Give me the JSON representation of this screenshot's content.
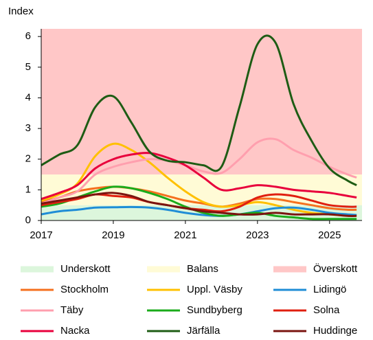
{
  "chart_data": {
    "type": "line",
    "y_label": "Index",
    "xlim": [
      2017,
      2025.9
    ],
    "ylim": [
      0,
      6.25
    ],
    "xticks": [
      2017,
      2019,
      2021,
      2023,
      2025
    ],
    "yticks": [
      0,
      1,
      2,
      3,
      4,
      5,
      6
    ],
    "bands": [
      {
        "name": "Underskott",
        "from": 0,
        "to": 0.5,
        "color": "#dcf6dc"
      },
      {
        "name": "Balans",
        "from": 0.5,
        "to": 1.5,
        "color": "#fffbd6"
      },
      {
        "name": "Överskott",
        "from": 1.5,
        "to": 6.25,
        "color": "#ffc7c7"
      }
    ],
    "x": [
      2017,
      2017.5,
      2018,
      2018.5,
      2019,
      2019.5,
      2020,
      2020.5,
      2021,
      2021.5,
      2022,
      2022.5,
      2023,
      2023.5,
      2024,
      2024.5,
      2025,
      2025.5,
      2025.75
    ],
    "series": [
      {
        "name": "Stockholm",
        "color": "#f5701e",
        "values": [
          0.6,
          0.75,
          0.95,
          1.05,
          1.1,
          1.05,
          0.95,
          0.8,
          0.65,
          0.55,
          0.45,
          0.55,
          0.7,
          0.7,
          0.6,
          0.5,
          0.4,
          0.35,
          0.35
        ]
      },
      {
        "name": "Uppl. Väsby",
        "color": "#ffc000",
        "values": [
          0.65,
          0.85,
          1.2,
          2.1,
          2.5,
          2.3,
          1.9,
          1.4,
          0.95,
          0.6,
          0.45,
          0.5,
          0.6,
          0.5,
          0.35,
          0.25,
          0.2,
          0.15,
          0.15
        ]
      },
      {
        "name": "Lidingö",
        "color": "#1f8dd6",
        "values": [
          0.2,
          0.3,
          0.35,
          0.42,
          0.43,
          0.44,
          0.42,
          0.35,
          0.25,
          0.18,
          0.15,
          0.2,
          0.3,
          0.4,
          0.42,
          0.35,
          0.25,
          0.2,
          0.18
        ]
      },
      {
        "name": "Täby",
        "color": "#ff9fae",
        "values": [
          0.55,
          0.75,
          0.95,
          1.5,
          1.75,
          1.9,
          2.0,
          1.95,
          1.8,
          1.6,
          1.55,
          2.0,
          2.55,
          2.65,
          2.3,
          2.05,
          1.75,
          1.5,
          1.4
        ]
      },
      {
        "name": "Sundbyberg",
        "color": "#1aab1a",
        "values": [
          0.45,
          0.55,
          0.75,
          0.95,
          1.1,
          1.05,
          0.9,
          0.7,
          0.45,
          0.25,
          0.15,
          0.2,
          0.25,
          0.15,
          0.1,
          0.05,
          0.05,
          0.05,
          0.05
        ]
      },
      {
        "name": "Solna",
        "color": "#e01f0f",
        "values": [
          0.5,
          0.6,
          0.7,
          0.85,
          0.8,
          0.75,
          0.6,
          0.5,
          0.4,
          0.35,
          0.3,
          0.45,
          0.75,
          0.85,
          0.8,
          0.65,
          0.5,
          0.45,
          0.45
        ]
      },
      {
        "name": "Nacka",
        "color": "#e8003c",
        "values": [
          0.7,
          0.9,
          1.15,
          1.7,
          2.0,
          2.15,
          2.2,
          2.05,
          1.8,
          1.4,
          1.0,
          1.05,
          1.15,
          1.1,
          1.0,
          0.95,
          0.9,
          0.8,
          0.75
        ]
      },
      {
        "name": "Järfälla",
        "color": "#1e5c14",
        "values": [
          1.8,
          2.15,
          2.45,
          3.7,
          4.05,
          3.2,
          2.25,
          1.95,
          1.9,
          1.8,
          1.75,
          3.7,
          5.75,
          5.8,
          3.8,
          2.6,
          1.7,
          1.3,
          1.15
        ]
      },
      {
        "name": "Huddinge",
        "color": "#7a1410",
        "values": [
          0.55,
          0.65,
          0.75,
          0.85,
          0.9,
          0.8,
          0.6,
          0.5,
          0.4,
          0.3,
          0.25,
          0.2,
          0.2,
          0.25,
          0.2,
          0.2,
          0.2,
          0.15,
          0.15
        ]
      }
    ]
  }
}
